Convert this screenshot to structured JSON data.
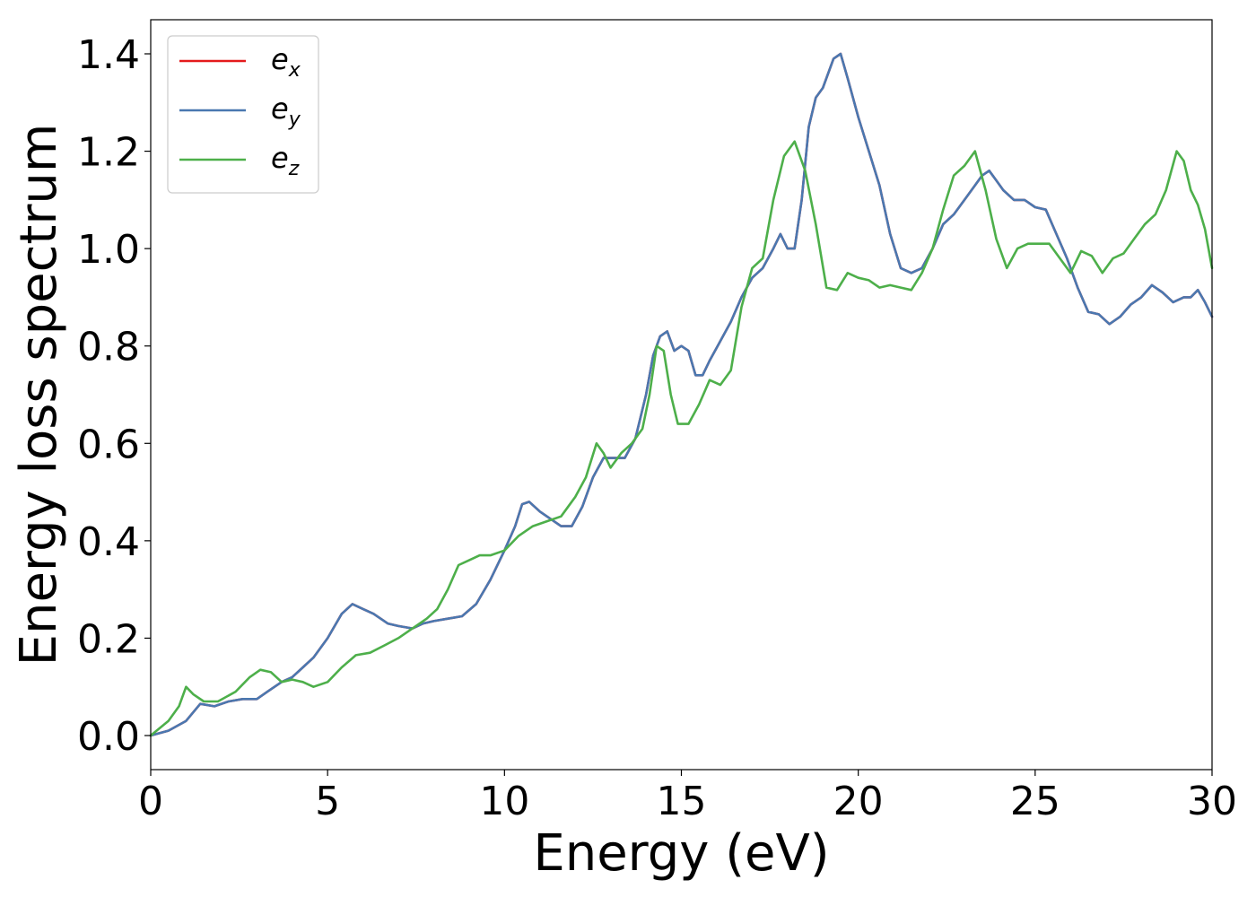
{
  "chart_data": {
    "type": "line",
    "xlabel": "Energy (eV)",
    "ylabel": "Energy loss spectrum",
    "xlim": [
      0,
      30
    ],
    "ylim": [
      -0.07,
      1.47
    ],
    "xticks": [
      0,
      5,
      10,
      15,
      20,
      25,
      30
    ],
    "yticks": [
      0.0,
      0.2,
      0.4,
      0.6,
      0.8,
      1.0,
      1.2,
      1.4
    ],
    "xtick_labels": [
      "0",
      "5",
      "10",
      "15",
      "20",
      "25",
      "30"
    ],
    "ytick_labels": [
      "0.0",
      "0.2",
      "0.4",
      "0.6",
      "0.8",
      "1.0",
      "1.2",
      "1.4"
    ],
    "grid": false,
    "legend_position": "top-left",
    "legend": [
      {
        "base": "e",
        "sub": "x",
        "color": "#e41a1c"
      },
      {
        "base": "e",
        "sub": "y",
        "color": "#4a78b0"
      },
      {
        "base": "e",
        "sub": "z",
        "color": "#4daf4a"
      }
    ],
    "series": [
      {
        "name": "e_x",
        "color": "#e41a1c",
        "x": [
          0,
          0.5,
          1.0,
          1.4,
          1.8,
          2.2,
          2.6,
          3.0,
          3.3,
          3.7,
          4.0,
          4.3,
          4.6,
          5.0,
          5.4,
          5.7,
          6.0,
          6.3,
          6.7,
          7.0,
          7.4,
          7.7,
          8.0,
          8.4,
          8.8,
          9.2,
          9.6,
          10.0,
          10.3,
          10.5,
          10.7,
          11.0,
          11.3,
          11.6,
          11.9,
          12.2,
          12.5,
          12.8,
          13.1,
          13.4,
          13.7,
          14.0,
          14.2,
          14.4,
          14.6,
          14.8,
          15.0,
          15.2,
          15.4,
          15.6,
          15.8,
          16.1,
          16.4,
          16.7,
          17.0,
          17.3,
          17.6,
          17.8,
          18.0,
          18.2,
          18.4,
          18.6,
          18.8,
          19.0,
          19.3,
          19.5,
          19.7,
          20.0,
          20.3,
          20.6,
          20.9,
          21.2,
          21.5,
          21.8,
          22.1,
          22.4,
          22.7,
          23.0,
          23.3,
          23.5,
          23.7,
          23.9,
          24.1,
          24.4,
          24.7,
          25.0,
          25.3,
          25.6,
          25.9,
          26.2,
          26.5,
          26.8,
          27.1,
          27.4,
          27.7,
          28.0,
          28.3,
          28.6,
          28.9,
          29.2,
          29.4,
          29.6,
          29.8,
          30.0
        ],
        "y": [
          0.0,
          0.01,
          0.03,
          0.065,
          0.06,
          0.07,
          0.075,
          0.075,
          0.09,
          0.11,
          0.12,
          0.14,
          0.16,
          0.2,
          0.25,
          0.27,
          0.26,
          0.25,
          0.23,
          0.225,
          0.22,
          0.23,
          0.235,
          0.24,
          0.245,
          0.27,
          0.32,
          0.38,
          0.43,
          0.475,
          0.48,
          0.46,
          0.445,
          0.43,
          0.43,
          0.47,
          0.53,
          0.57,
          0.57,
          0.57,
          0.61,
          0.7,
          0.78,
          0.82,
          0.83,
          0.79,
          0.8,
          0.79,
          0.74,
          0.74,
          0.77,
          0.81,
          0.85,
          0.9,
          0.94,
          0.96,
          1.0,
          1.03,
          1.0,
          1.0,
          1.1,
          1.25,
          1.31,
          1.33,
          1.39,
          1.4,
          1.35,
          1.27,
          1.2,
          1.13,
          1.03,
          0.96,
          0.95,
          0.96,
          1.0,
          1.05,
          1.07,
          1.1,
          1.13,
          1.15,
          1.16,
          1.14,
          1.12,
          1.1,
          1.1,
          1.085,
          1.08,
          1.03,
          0.98,
          0.92,
          0.87,
          0.865,
          0.845,
          0.86,
          0.885,
          0.9,
          0.925,
          0.91,
          0.89,
          0.9,
          0.9,
          0.915,
          0.89,
          0.86
        ]
      },
      {
        "name": "e_y",
        "color": "#4a78b0",
        "x": [
          0,
          0.5,
          1.0,
          1.4,
          1.8,
          2.2,
          2.6,
          3.0,
          3.3,
          3.7,
          4.0,
          4.3,
          4.6,
          5.0,
          5.4,
          5.7,
          6.0,
          6.3,
          6.7,
          7.0,
          7.4,
          7.7,
          8.0,
          8.4,
          8.8,
          9.2,
          9.6,
          10.0,
          10.3,
          10.5,
          10.7,
          11.0,
          11.3,
          11.6,
          11.9,
          12.2,
          12.5,
          12.8,
          13.1,
          13.4,
          13.7,
          14.0,
          14.2,
          14.4,
          14.6,
          14.8,
          15.0,
          15.2,
          15.4,
          15.6,
          15.8,
          16.1,
          16.4,
          16.7,
          17.0,
          17.3,
          17.6,
          17.8,
          18.0,
          18.2,
          18.4,
          18.6,
          18.8,
          19.0,
          19.3,
          19.5,
          19.7,
          20.0,
          20.3,
          20.6,
          20.9,
          21.2,
          21.5,
          21.8,
          22.1,
          22.4,
          22.7,
          23.0,
          23.3,
          23.5,
          23.7,
          23.9,
          24.1,
          24.4,
          24.7,
          25.0,
          25.3,
          25.6,
          25.9,
          26.2,
          26.5,
          26.8,
          27.1,
          27.4,
          27.7,
          28.0,
          28.3,
          28.6,
          28.9,
          29.2,
          29.4,
          29.6,
          29.8,
          30.0
        ],
        "y": [
          0.0,
          0.01,
          0.03,
          0.065,
          0.06,
          0.07,
          0.075,
          0.075,
          0.09,
          0.11,
          0.12,
          0.14,
          0.16,
          0.2,
          0.25,
          0.27,
          0.26,
          0.25,
          0.23,
          0.225,
          0.22,
          0.23,
          0.235,
          0.24,
          0.245,
          0.27,
          0.32,
          0.38,
          0.43,
          0.475,
          0.48,
          0.46,
          0.445,
          0.43,
          0.43,
          0.47,
          0.53,
          0.57,
          0.57,
          0.57,
          0.61,
          0.7,
          0.78,
          0.82,
          0.83,
          0.79,
          0.8,
          0.79,
          0.74,
          0.74,
          0.77,
          0.81,
          0.85,
          0.9,
          0.94,
          0.96,
          1.0,
          1.03,
          1.0,
          1.0,
          1.1,
          1.25,
          1.31,
          1.33,
          1.39,
          1.4,
          1.35,
          1.27,
          1.2,
          1.13,
          1.03,
          0.96,
          0.95,
          0.96,
          1.0,
          1.05,
          1.07,
          1.1,
          1.13,
          1.15,
          1.16,
          1.14,
          1.12,
          1.1,
          1.1,
          1.085,
          1.08,
          1.03,
          0.98,
          0.92,
          0.87,
          0.865,
          0.845,
          0.86,
          0.885,
          0.9,
          0.925,
          0.91,
          0.89,
          0.9,
          0.9,
          0.915,
          0.89,
          0.86
        ]
      },
      {
        "name": "e_z",
        "color": "#4daf4a",
        "x": [
          0,
          0.5,
          0.8,
          1.0,
          1.2,
          1.5,
          1.9,
          2.4,
          2.8,
          3.1,
          3.4,
          3.7,
          4.0,
          4.3,
          4.6,
          5.0,
          5.4,
          5.8,
          6.2,
          6.6,
          7.0,
          7.4,
          7.8,
          8.1,
          8.4,
          8.7,
          9.0,
          9.3,
          9.6,
          10.0,
          10.4,
          10.8,
          11.2,
          11.6,
          12.0,
          12.3,
          12.6,
          12.8,
          13.0,
          13.3,
          13.6,
          13.9,
          14.1,
          14.3,
          14.5,
          14.7,
          14.9,
          15.2,
          15.5,
          15.8,
          16.1,
          16.4,
          16.7,
          17.0,
          17.3,
          17.6,
          17.9,
          18.2,
          18.5,
          18.8,
          19.1,
          19.4,
          19.7,
          20.0,
          20.3,
          20.6,
          20.9,
          21.2,
          21.5,
          21.8,
          22.1,
          22.4,
          22.7,
          23.0,
          23.3,
          23.6,
          23.9,
          24.2,
          24.5,
          24.8,
          25.1,
          25.4,
          25.7,
          26.0,
          26.3,
          26.6,
          26.9,
          27.2,
          27.5,
          27.8,
          28.1,
          28.4,
          28.7,
          29.0,
          29.2,
          29.4,
          29.6,
          29.8,
          30.0
        ],
        "y": [
          0.0,
          0.03,
          0.06,
          0.1,
          0.085,
          0.07,
          0.07,
          0.09,
          0.12,
          0.135,
          0.13,
          0.11,
          0.115,
          0.11,
          0.1,
          0.11,
          0.14,
          0.165,
          0.17,
          0.185,
          0.2,
          0.22,
          0.24,
          0.26,
          0.3,
          0.35,
          0.36,
          0.37,
          0.37,
          0.38,
          0.41,
          0.43,
          0.44,
          0.45,
          0.49,
          0.53,
          0.6,
          0.58,
          0.55,
          0.58,
          0.6,
          0.63,
          0.7,
          0.8,
          0.79,
          0.7,
          0.64,
          0.64,
          0.68,
          0.73,
          0.72,
          0.75,
          0.88,
          0.96,
          0.98,
          1.1,
          1.19,
          1.22,
          1.16,
          1.05,
          0.92,
          0.915,
          0.95,
          0.94,
          0.935,
          0.92,
          0.925,
          0.92,
          0.915,
          0.95,
          1.0,
          1.08,
          1.15,
          1.17,
          1.2,
          1.12,
          1.02,
          0.96,
          1.0,
          1.01,
          1.01,
          1.01,
          0.98,
          0.95,
          0.995,
          0.985,
          0.95,
          0.98,
          0.99,
          1.02,
          1.05,
          1.07,
          1.12,
          1.2,
          1.18,
          1.12,
          1.09,
          1.04,
          0.96
        ]
      }
    ]
  }
}
